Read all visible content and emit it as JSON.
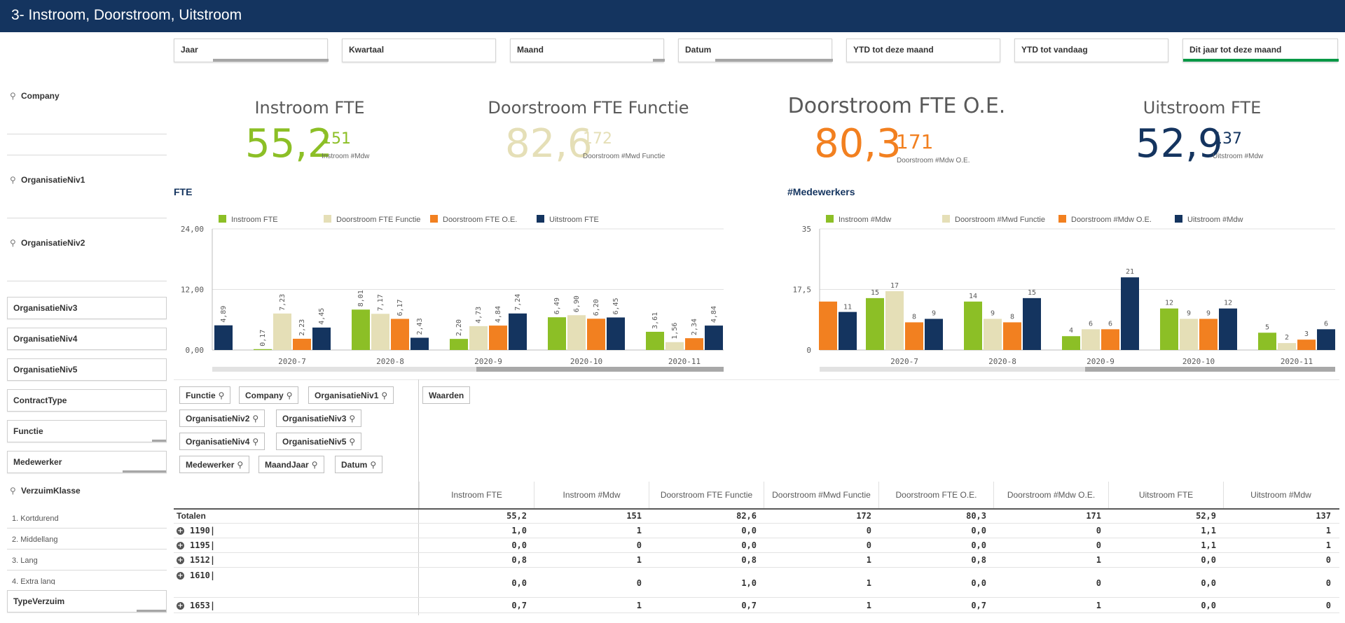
{
  "app": {
    "title": "3- Instroom, Doorstroom, Uitstroom"
  },
  "filters": [
    {
      "label": "Jaar",
      "fill": "partial-right"
    },
    {
      "label": "Kwartaal",
      "fill": "none"
    },
    {
      "label": "Maand",
      "fill": "tail"
    },
    {
      "label": "Datum",
      "fill": "partial-right"
    },
    {
      "label": "YTD tot deze maand",
      "fill": "none"
    },
    {
      "label": "YTD tot vandaag",
      "fill": "none"
    },
    {
      "label": "Dit jaar tot deze maand",
      "fill": "full-green"
    }
  ],
  "left_panel": {
    "search_fields": [
      "Company",
      "OrganisatieNiv1",
      "OrganisatieNiv2"
    ],
    "boxes": [
      "OrganisatieNiv3",
      "OrganisatieNiv4",
      "OrganisatieNiv5",
      "ContractType",
      "Functie",
      "Medewerker"
    ],
    "verzuim": {
      "label": "VerzuimKlasse",
      "items": [
        "1. Kortdurend",
        "2. Middellang",
        "3. Lang",
        "4. Extra lang"
      ]
    },
    "type_verzuim": "TypeVerzuim"
  },
  "kpis": [
    {
      "title": "Instroom FTE",
      "value": "55,2",
      "count": "151",
      "sub": "Instroom #Mdw",
      "color": "#8cbf26"
    },
    {
      "title": "Doorstroom FTE Functie",
      "value": "82,6",
      "count": "172",
      "sub": "Doorstroom #Mwd Functie",
      "color": "#e5dfb7"
    },
    {
      "title": "Doorstroom FTE O.E.",
      "value": "80,3",
      "count": "171",
      "sub": "Doorstroom #Mdw O.E.",
      "color": "#f28020"
    },
    {
      "title": "Uitstroom FTE",
      "value": "52,9",
      "count": "137",
      "sub": "Uitstroom #Mdw",
      "color": "#14345f"
    }
  ],
  "chart_data": [
    {
      "type": "bar",
      "title": "FTE",
      "categories": [
        "2020-7",
        "2020-8",
        "2020-9",
        "2020-10",
        "2020-11"
      ],
      "leading_partial": {
        "series": "Uitstroom FTE",
        "value": 4.89,
        "label": "4,89"
      },
      "series": [
        {
          "name": "Instroom FTE",
          "color": "#8cbf26",
          "values": [
            0.17,
            8.01,
            2.2,
            6.49,
            3.61
          ],
          "labels": [
            "0,17",
            "8,01",
            "2,20",
            "6,49",
            "3,61"
          ]
        },
        {
          "name": "Doorstroom FTE Functie",
          "color": "#e5dfb7",
          "values": [
            7.23,
            7.17,
            4.73,
            6.9,
            1.56
          ],
          "labels": [
            "7,23",
            "7,17",
            "4,73",
            "6,90",
            "1,56"
          ]
        },
        {
          "name": "Doorstroom FTE O.E.",
          "color": "#f28020",
          "values": [
            2.23,
            6.17,
            4.84,
            6.2,
            2.34
          ],
          "labels": [
            "2,23",
            "6,17",
            "4,84",
            "6,20",
            "2,34"
          ]
        },
        {
          "name": "Uitstroom FTE",
          "color": "#14345f",
          "values": [
            4.45,
            2.43,
            7.24,
            6.45,
            4.84
          ],
          "labels": [
            "4,45",
            "2,43",
            "7,24",
            "6,45",
            "4,84"
          ]
        }
      ],
      "ylim": [
        0,
        24
      ],
      "yticks": [
        "0,00",
        "12,00",
        "24,00"
      ],
      "legend": "top",
      "grid": true,
      "value_label_rotation": "vertical"
    },
    {
      "type": "bar",
      "title": "#Medewerkers",
      "categories": [
        "2020-7",
        "2020-8",
        "2020-9",
        "2020-10",
        "2020-11"
      ],
      "leading_partial": [
        {
          "series": "Doorstroom #Mdw O.E.",
          "value": 14,
          "label": ""
        },
        {
          "series": "Uitstroom #Mdw",
          "value": 11,
          "label": "11"
        }
      ],
      "series": [
        {
          "name": "Instroom #Mdw",
          "color": "#8cbf26",
          "values": [
            15,
            14,
            4,
            12,
            5
          ],
          "labels": [
            "15",
            "14",
            "4",
            "12",
            "5"
          ]
        },
        {
          "name": "Doorstroom #Mwd Functie",
          "color": "#e5dfb7",
          "values": [
            17,
            9,
            6,
            9,
            2
          ],
          "labels": [
            "17",
            "9",
            "6",
            "9",
            "2"
          ]
        },
        {
          "name": "Doorstroom #Mdw O.E.",
          "color": "#f28020",
          "values": [
            8,
            8,
            6,
            9,
            3
          ],
          "labels": [
            "8",
            "8",
            "6",
            "9",
            "3"
          ]
        },
        {
          "name": "Uitstroom #Mdw",
          "color": "#14345f",
          "values": [
            9,
            15,
            21,
            12,
            6
          ],
          "labels": [
            "9",
            "15",
            "21",
            "12",
            "6"
          ]
        }
      ],
      "ylim": [
        0,
        35
      ],
      "yticks": [
        "0",
        "17,5",
        "35"
      ],
      "legend": "top",
      "grid": true
    }
  ],
  "table": {
    "dimension_chips": [
      [
        "Functie",
        "Company",
        "OrganisatieNiv1"
      ],
      [
        "OrganisatieNiv2",
        "OrganisatieNiv3"
      ],
      [
        "OrganisatieNiv4",
        "OrganisatieNiv5"
      ],
      [
        "Medewerker",
        "MaandJaar",
        "Datum"
      ]
    ],
    "values_chip": "Waarden",
    "headers": [
      "Instroom FTE",
      "Instroom #Mdw",
      "Doorstroom FTE Functie",
      "Doorstroom #Mwd Functie",
      "Doorstroom FTE O.E.",
      "Doorstroom #Mdw O.E.",
      "Uitstroom FTE",
      "Uitstroom #Mdw"
    ],
    "totals_label": "Totalen",
    "totals": [
      "55,2",
      "151",
      "82,6",
      "172",
      "80,3",
      "171",
      "52,9",
      "137"
    ],
    "rows": [
      {
        "label": "1190|",
        "cells": [
          "1,0",
          "1",
          "0,0",
          "0",
          "0,0",
          "0",
          "1,1",
          "1"
        ]
      },
      {
        "label": "1195|",
        "cells": [
          "0,0",
          "0",
          "0,0",
          "0",
          "0,0",
          "0",
          "1,1",
          "1"
        ]
      },
      {
        "label": "1512|",
        "cells": [
          "0,8",
          "1",
          "0,8",
          "1",
          "0,8",
          "1",
          "0,0",
          "0"
        ]
      },
      {
        "label": "1610|",
        "cells": [
          "0,0",
          "0",
          "1,0",
          "1",
          "0,0",
          "0",
          "0,0",
          "0"
        ]
      },
      {
        "label": "1653|",
        "cells": [
          "0,7",
          "1",
          "0,7",
          "1",
          "0,7",
          "1",
          "0,0",
          "0"
        ]
      }
    ]
  }
}
